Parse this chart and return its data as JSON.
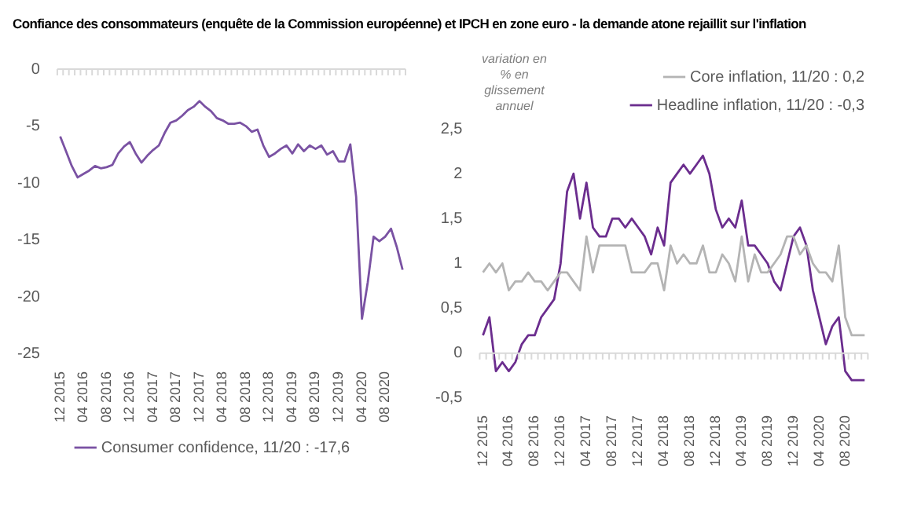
{
  "chart_data": [
    {
      "type": "line",
      "title": "Confiance des consommateurs (enquête de la Commission européenne) et IPCH en zone euro - la demande atone rejaillit sur l'inflation",
      "categories": [
        "12 2015",
        null,
        null,
        null,
        "04 2016",
        null,
        null,
        null,
        "08 2016",
        null,
        null,
        null,
        "12 2016",
        null,
        null,
        null,
        "04 2017",
        null,
        null,
        null,
        "08 2017",
        null,
        null,
        null,
        "12 2017",
        null,
        null,
        null,
        "04 2018",
        null,
        null,
        null,
        "08 2018",
        null,
        null,
        null,
        "12 2018",
        null,
        null,
        null,
        "04 2019",
        null,
        null,
        null,
        "08 2019",
        null,
        null,
        null,
        "12 2019",
        null,
        null,
        null,
        "04 2020",
        null,
        null,
        null,
        "08 2020",
        null,
        null,
        null
      ],
      "series": [
        {
          "name": "Consumer confidence, 11/20 : -17,6",
          "color": "#7a52a3",
          "values": [
            -5.9,
            -7.2,
            -8.5,
            -9.5,
            -9.2,
            -8.9,
            -8.5,
            -8.7,
            -8.6,
            -8.4,
            -7.4,
            -6.8,
            -6.4,
            -7.4,
            -8.2,
            -7.6,
            -7.1,
            -6.7,
            -5.6,
            -4.7,
            -4.5,
            -4.1,
            -3.6,
            -3.3,
            -2.8,
            -3.3,
            -3.7,
            -4.3,
            -4.5,
            -4.8,
            -4.8,
            -4.7,
            -5.0,
            -5.5,
            -5.3,
            -6.7,
            -7.7,
            -7.4,
            -7.0,
            -6.7,
            -7.4,
            -6.6,
            -7.2,
            -6.7,
            -7.0,
            -6.7,
            -7.5,
            -7.2,
            -8.1,
            -8.1,
            -6.6,
            -11.2,
            -21.9,
            -18.7,
            -14.7,
            -15.1,
            -14.7,
            -14.0,
            -15.6,
            -17.6
          ]
        }
      ],
      "ylim": [
        -25,
        0
      ],
      "yticks": [
        -25,
        -20,
        -15,
        -10,
        -5,
        0
      ],
      "legend": "bottom"
    },
    {
      "type": "line",
      "ylabel": "variation en % en glissement annuel",
      "categories": [
        "12 2015",
        null,
        null,
        null,
        "04 2016",
        null,
        null,
        null,
        "08 2016",
        null,
        null,
        null,
        "12 2016",
        null,
        null,
        null,
        "04 2017",
        null,
        null,
        null,
        "08 2017",
        null,
        null,
        null,
        "12 2017",
        null,
        null,
        null,
        "04 2018",
        null,
        null,
        null,
        "08 2018",
        null,
        null,
        null,
        "12 2018",
        null,
        null,
        null,
        "04 2019",
        null,
        null,
        null,
        "08 2019",
        null,
        null,
        null,
        "12 2019",
        null,
        null,
        null,
        "04 2020",
        null,
        null,
        null,
        "08 2020",
        null,
        null,
        null
      ],
      "series": [
        {
          "name": "Core inflation, 11/20 : 0,2",
          "color": "#b4b4b4",
          "values": [
            0.9,
            1.0,
            0.9,
            1.0,
            0.7,
            0.8,
            0.8,
            0.9,
            0.8,
            0.8,
            0.7,
            0.8,
            0.9,
            0.9,
            0.8,
            0.7,
            1.3,
            0.9,
            1.2,
            1.2,
            1.2,
            1.2,
            1.2,
            0.9,
            0.9,
            0.9,
            1.0,
            1.0,
            0.7,
            1.2,
            1.0,
            1.1,
            1.0,
            1.0,
            1.2,
            0.9,
            0.9,
            1.1,
            1.0,
            0.8,
            1.3,
            0.8,
            1.1,
            0.9,
            0.9,
            1.0,
            1.1,
            1.3,
            1.3,
            1.1,
            1.2,
            1.0,
            0.9,
            0.9,
            0.8,
            1.2,
            0.4,
            0.2,
            0.2,
            0.2
          ]
        },
        {
          "name": "Headline inflation, 11/20 : -0,3",
          "color": "#6b2d8e",
          "values": [
            0.2,
            0.4,
            -0.2,
            -0.1,
            -0.2,
            -0.1,
            0.1,
            0.2,
            0.2,
            0.4,
            0.5,
            0.6,
            1.0,
            1.8,
            2.0,
            1.5,
            1.9,
            1.4,
            1.3,
            1.3,
            1.5,
            1.5,
            1.4,
            1.5,
            1.4,
            1.3,
            1.1,
            1.4,
            1.2,
            1.9,
            2.0,
            2.1,
            2.0,
            2.1,
            2.2,
            2.0,
            1.6,
            1.4,
            1.5,
            1.4,
            1.7,
            1.2,
            1.2,
            1.1,
            1.0,
            0.8,
            0.7,
            1.0,
            1.3,
            1.4,
            1.2,
            0.7,
            0.4,
            0.1,
            0.3,
            0.4,
            -0.2,
            -0.3,
            -0.3,
            -0.3
          ]
        }
      ],
      "ylim": [
        -0.5,
        2.5
      ],
      "yticks": [
        {
          "value": -0.5,
          "label": "-0,5"
        },
        0,
        {
          "value": 0.5,
          "label": "0,5"
        },
        1,
        {
          "value": 1.5,
          "label": "1,5"
        },
        2,
        {
          "value": 2.5,
          "label": "2,5"
        }
      ],
      "legend": "top right"
    }
  ]
}
